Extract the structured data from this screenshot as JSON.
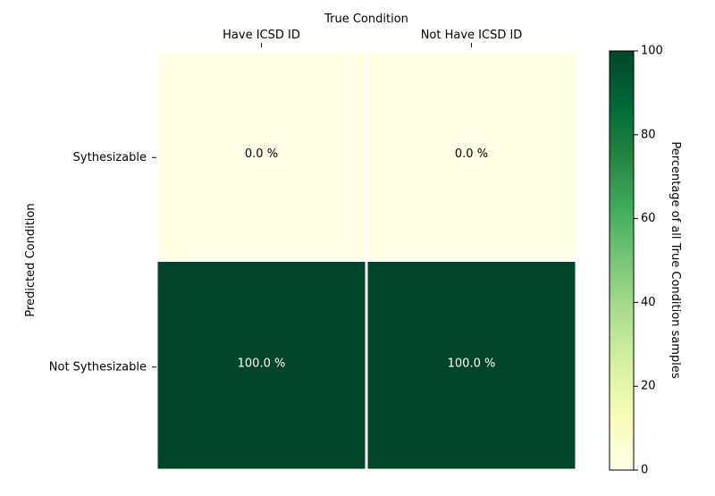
{
  "chart_data": {
    "type": "heatmap",
    "x_title": "True Condition",
    "y_title": "Predicted Condition",
    "x_categories": [
      "Have ICSD ID",
      "Not Have ICSD ID"
    ],
    "y_categories": [
      "Sythesizable",
      "Not Sythesizable"
    ],
    "values": [
      [
        0.0,
        0.0
      ],
      [
        100.0,
        100.0
      ]
    ],
    "cell_labels": [
      [
        "0.0 %",
        "0.0 %"
      ],
      [
        "100.0 %",
        "100.0 %"
      ]
    ],
    "colorbar": {
      "label": "Percentage of all True Condition samples",
      "range": [
        0,
        100
      ],
      "ticks": [
        "0",
        "20",
        "40",
        "60",
        "80",
        "100"
      ],
      "colormap": "YlGn"
    },
    "colors": {
      "low": "#ffffe5",
      "high": "#004529",
      "text_on_low": "#000000",
      "text_on_high": "#ffffff"
    }
  }
}
